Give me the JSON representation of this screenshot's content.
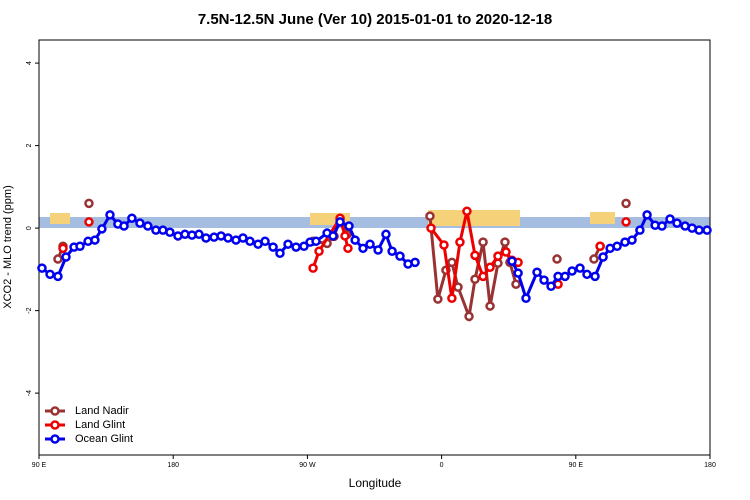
{
  "chart_data": {
    "type": "line",
    "title": "7.5N-12.5N June (Ver 10)   2015-01-01 to 2020-12-18",
    "x_label": "Longitude",
    "y_label": "XCO2 - MLO trend (ppm)",
    "xlim": [
      90,
      540
    ],
    "ylim": [
      -5.5,
      4.56
    ],
    "xticks": [
      {
        "value": 90,
        "label": "90 E"
      },
      180,
      {
        "value": 270,
        "label": "90 W"
      },
      {
        "value": 360,
        "label": "0"
      },
      {
        "value": 450,
        "label": "90 E"
      },
      {
        "value": 540,
        "label": "180"
      }
    ],
    "yticks": [
      -4,
      -2,
      0,
      2,
      4
    ],
    "legend": "bottomleft",
    "series": [
      {
        "name": "Land Nadir",
        "color": "#993333",
        "x": [
          102.7,
          106.1,
          null,
          123.5,
          null,
          273.8,
          283.2,
          287.9,
          291.9,
          296.6,
          null,
          352.2,
          357.5,
          362.9,
          366.9,
          371,
          378.4,
          382.4,
          387.8,
          392.5,
          397.8,
          402.5,
          405.8,
          409.9,
          null,
          437.4,
          null,
          462.2,
          466.3,
          null,
          483.7
        ],
        "values": [
          -0.75,
          -0.44,
          null,
          0.6,
          null,
          -0.32,
          -0.37,
          -0.2,
          0.22,
          -0.15,
          null,
          0.29,
          -1.72,
          -1.02,
          -0.83,
          -1.43,
          -2.14,
          -1.24,
          -0.34,
          -1.89,
          -0.85,
          -0.34,
          -0.83,
          -1.36,
          null,
          -0.75,
          null,
          -0.75,
          -0.44,
          null,
          0.6
        ]
      },
      {
        "name": "Land Glint",
        "color": "#ee0000",
        "x": [
          106.1,
          null,
          123.5,
          null,
          273.8,
          277.8,
          291.9,
          295.2,
          297.2,
          null,
          352.9,
          361.6,
          366.9,
          372.3,
          377,
          382.4,
          387.8,
          392.5,
          397.8,
          403.2,
          407.2,
          411.3,
          null,
          438.1,
          null,
          466.3,
          null,
          483.7
        ],
        "values": [
          -0.49,
          null,
          0.15,
          null,
          -0.97,
          -0.56,
          0.24,
          -0.19,
          -0.49,
          null,
          0,
          -0.41,
          -1.7,
          -0.34,
          0.41,
          -0.66,
          -1.17,
          -0.95,
          -0.68,
          -0.58,
          -0.78,
          -0.83,
          null,
          -1.36,
          null,
          -0.44,
          null,
          0.15
        ]
      },
      {
        "name": "Ocean Glint",
        "color": "#0000ee",
        "x": [
          92,
          97.4,
          102.7,
          108.1,
          113.5,
          117.5,
          122.9,
          127.5,
          132.2,
          137.6,
          142.9,
          147,
          152.3,
          157.7,
          163,
          168.4,
          173.1,
          177.8,
          183.2,
          187.9,
          192.6,
          197.3,
          202,
          207.4,
          212.1,
          216.8,
          222.1,
          226.8,
          231.5,
          236.9,
          241.6,
          247,
          251.6,
          257,
          262.4,
          267.7,
          271.8,
          275.8,
          283.2,
          287.2,
          291.9,
          297.9,
          302,
          307.3,
          312,
          317.4,
          322.7,
          326.8,
          332.1,
          337.5,
          342.2,
          null,
          407.2,
          411.3,
          416.6,
          424,
          428.7,
          433.4,
          438.1,
          442.8,
          447.5,
          452.8,
          457.5,
          462.9,
          468.3,
          473,
          477.7,
          483,
          487.7,
          493,
          497.8,
          503.2,
          507.8,
          513.2,
          517.9,
          523.3,
          528,
          532.7,
          538
        ],
        "values": [
          -0.97,
          -1.12,
          -1.17,
          -0.7,
          -0.46,
          -0.44,
          -0.32,
          -0.29,
          -0.02,
          0.32,
          0.1,
          0.05,
          0.24,
          0.12,
          0.05,
          -0.05,
          -0.05,
          -0.1,
          -0.19,
          -0.15,
          -0.17,
          -0.15,
          -0.24,
          -0.22,
          -0.19,
          -0.24,
          -0.29,
          -0.24,
          -0.32,
          -0.39,
          -0.32,
          -0.46,
          -0.61,
          -0.39,
          -0.46,
          -0.44,
          -0.34,
          -0.32,
          -0.12,
          -0.19,
          0.15,
          0.05,
          -0.29,
          -0.49,
          -0.39,
          -0.53,
          -0.15,
          -0.56,
          -0.68,
          -0.87,
          -0.83,
          null,
          -0.8,
          -1.09,
          -1.7,
          -1.07,
          -1.26,
          -1.41,
          -1.17,
          -1.17,
          -1.04,
          -0.97,
          -1.12,
          -1.17,
          -0.7,
          -0.49,
          -0.44,
          -0.34,
          -0.29,
          -0.05,
          0.32,
          0.07,
          0.05,
          0.22,
          0.12,
          0.05,
          0,
          -0.05,
          -0.05
        ]
      }
    ]
  }
}
